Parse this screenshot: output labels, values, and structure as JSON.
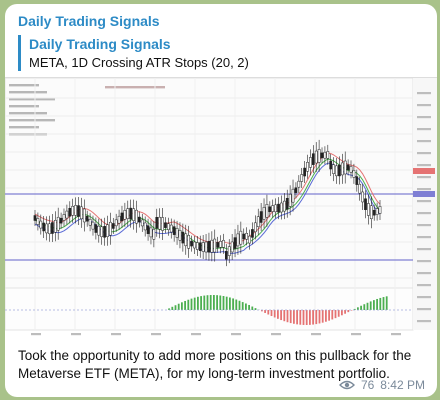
{
  "channel": {
    "name": "Daily Trading Signals"
  },
  "reply": {
    "title": "Daily Trading Signals",
    "text": "META, 1D Crossing ATR Stops (20, 2)"
  },
  "message": {
    "caption": "Took the opportunity to add more positions on this pullback for the Metaverse ETF (META), for my long-term investment portfolio.",
    "views": "76",
    "time": "8:42 PM"
  },
  "icons": {
    "views": "eye-icon"
  },
  "colors": {
    "accent": "#2d8bc6",
    "candle": "#222222",
    "ma_green": "#4caf50",
    "ma_red": "#e57373",
    "ma_blue": "#5b6bd6",
    "hist_up": "#4caf50",
    "hist_down": "#e57373",
    "level_line": "#7f7fd4"
  }
}
